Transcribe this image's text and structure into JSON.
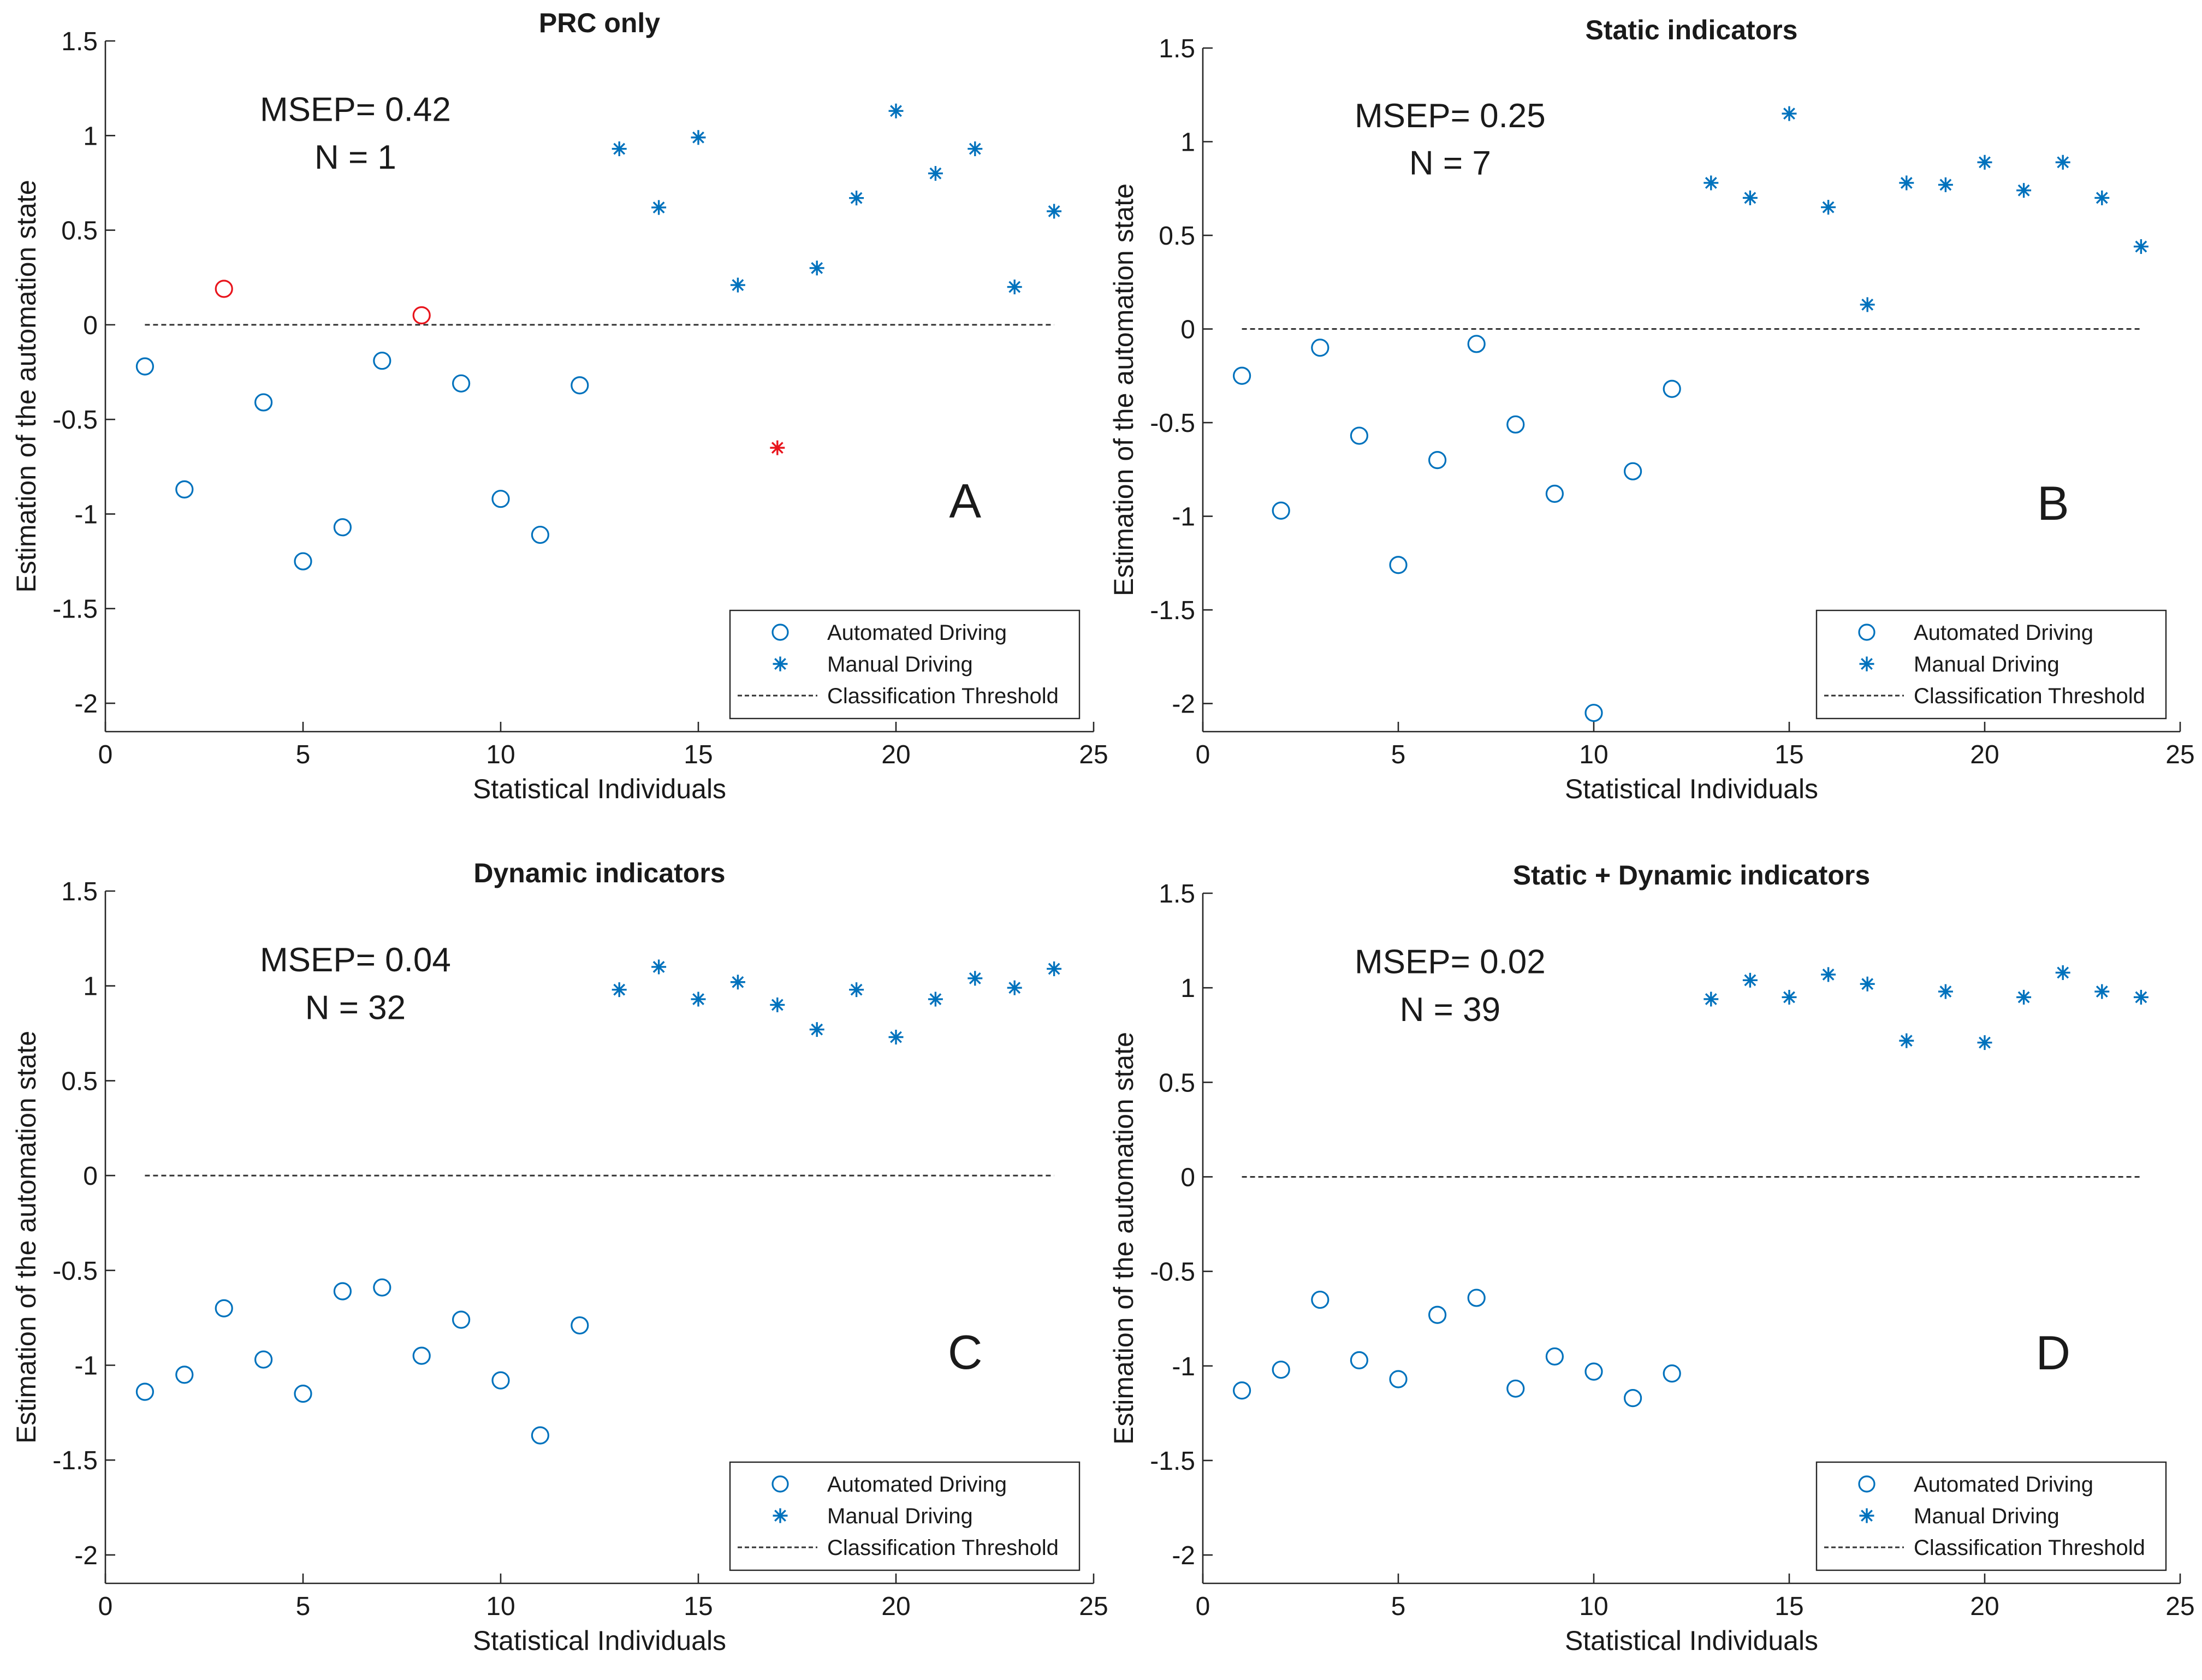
{
  "colors": {
    "automated": "#0072BD",
    "manual": "#0072BD",
    "misclassified": "#E8141C",
    "threshold": "#333333",
    "axis": "#262626"
  },
  "chart_data": [
    {
      "type": "scatter",
      "title": "PRC only",
      "panel_letter": "A",
      "annotation": {
        "msep": "MSEP= 0.42",
        "n": "N = 1"
      },
      "xlabel": "Statistical Individuals",
      "ylabel": "Estimation of the automation state",
      "xlim": [
        0,
        25
      ],
      "ylim": [
        -2.15,
        1.5
      ],
      "xticks": [
        0,
        5,
        10,
        15,
        20,
        25
      ],
      "xtick_labels": [
        "0",
        "5",
        "10",
        "15",
        "20",
        "25"
      ],
      "yticks": [
        1.5,
        1,
        0.5,
        0,
        -0.5,
        -1,
        -1.5,
        -2
      ],
      "ytick_labels": [
        "1.5",
        "1",
        "0.5",
        "0",
        "-0.5",
        "-1",
        "-1.5",
        "-2"
      ],
      "threshold": {
        "y": 0,
        "x": [
          1,
          24
        ]
      },
      "series": [
        {
          "name": "Automated Driving",
          "marker": "circle",
          "x": [
            1,
            2,
            3,
            4,
            5,
            6,
            7,
            8,
            9,
            10,
            11,
            12
          ],
          "y": [
            -0.22,
            -0.87,
            0.19,
            -0.41,
            -1.25,
            -1.07,
            -0.19,
            0.05,
            -0.31,
            -0.92,
            -1.11,
            -0.32
          ],
          "misclassified": [
            3,
            8
          ]
        },
        {
          "name": "Manual Driving",
          "marker": "star",
          "x": [
            13,
            14,
            15,
            16,
            17,
            18,
            19,
            20,
            21,
            22,
            23,
            24
          ],
          "y": [
            0.93,
            0.62,
            0.99,
            0.21,
            -0.65,
            0.3,
            0.67,
            1.13,
            0.8,
            0.93,
            0.2,
            0.6
          ],
          "misclassified": [
            17
          ]
        }
      ],
      "legend": {
        "placement": "bottom-right",
        "entries": [
          "Automated Driving",
          "Manual Driving",
          "Classification Threshold"
        ]
      }
    },
    {
      "type": "scatter",
      "title": "Static indicators",
      "panel_letter": "B",
      "annotation": {
        "msep": "MSEP= 0.25",
        "n": "N = 7"
      },
      "xlabel": "Statistical Individuals",
      "ylabel": "Estimation of the automation state",
      "xlim": [
        0,
        25
      ],
      "ylim": [
        -2.15,
        1.5
      ],
      "xticks": [
        0,
        5,
        10,
        15,
        20,
        25
      ],
      "xtick_labels": [
        "0",
        "5",
        "10",
        "15",
        "20",
        "25"
      ],
      "yticks": [
        1.5,
        1,
        0.5,
        0,
        -0.5,
        -1,
        -1.5,
        -2
      ],
      "ytick_labels": [
        "1.5",
        "1",
        "0.5",
        "0",
        "-0.5",
        "-1",
        "-1.5",
        "-2"
      ],
      "threshold": {
        "y": 0,
        "x": [
          1,
          24
        ]
      },
      "series": [
        {
          "name": "Automated Driving",
          "marker": "circle",
          "x": [
            1,
            2,
            3,
            4,
            5,
            6,
            7,
            8,
            9,
            10,
            11,
            12
          ],
          "y": [
            -0.25,
            -0.97,
            -0.1,
            -0.57,
            -1.26,
            -0.7,
            -0.08,
            -0.51,
            -0.88,
            -2.05,
            -0.76,
            -0.32
          ],
          "misclassified": []
        },
        {
          "name": "Manual Driving",
          "marker": "star",
          "x": [
            13,
            14,
            15,
            16,
            17,
            18,
            19,
            20,
            21,
            22,
            23,
            24
          ],
          "y": [
            0.78,
            0.7,
            1.15,
            0.65,
            0.13,
            0.78,
            0.77,
            0.89,
            0.74,
            0.89,
            0.7,
            0.44
          ],
          "misclassified": []
        }
      ],
      "legend": {
        "placement": "bottom-right",
        "entries": [
          "Automated Driving",
          "Manual Driving",
          "Classification Threshold"
        ]
      }
    },
    {
      "type": "scatter",
      "title": "Dynamic indicators",
      "panel_letter": "C",
      "annotation": {
        "msep": "MSEP= 0.04",
        "n": "N = 32"
      },
      "xlabel": "Statistical Individuals",
      "ylabel": "Estimation of the automation state",
      "xlim": [
        0,
        25
      ],
      "ylim": [
        -2.15,
        1.5
      ],
      "xticks": [
        0,
        5,
        10,
        15,
        20,
        25
      ],
      "xtick_labels": [
        "0",
        "5",
        "10",
        "15",
        "20",
        "25"
      ],
      "yticks": [
        1.5,
        1,
        0.5,
        0,
        -0.5,
        -1,
        -1.5,
        -2
      ],
      "ytick_labels": [
        "1.5",
        "1",
        "0.5",
        "0",
        "-0.5",
        "-1",
        "-1.5",
        "-2"
      ],
      "threshold": {
        "y": 0,
        "x": [
          1,
          24
        ]
      },
      "series": [
        {
          "name": "Automated Driving",
          "marker": "circle",
          "x": [
            1,
            2,
            3,
            4,
            5,
            6,
            7,
            8,
            9,
            10,
            11,
            12
          ],
          "y": [
            -1.14,
            -1.05,
            -0.7,
            -0.97,
            -1.15,
            -0.61,
            -0.59,
            -0.95,
            -0.76,
            -1.08,
            -1.37,
            -0.79
          ],
          "misclassified": []
        },
        {
          "name": "Manual Driving",
          "marker": "star",
          "x": [
            13,
            14,
            15,
            16,
            17,
            18,
            19,
            20,
            21,
            22,
            23,
            24
          ],
          "y": [
            0.98,
            1.1,
            0.93,
            1.02,
            0.9,
            0.77,
            0.98,
            0.73,
            0.93,
            1.04,
            0.99,
            1.09
          ],
          "misclassified": []
        }
      ],
      "legend": {
        "placement": "bottom-right",
        "entries": [
          "Automated Driving",
          "Manual Driving",
          "Classification Threshold"
        ]
      }
    },
    {
      "type": "scatter",
      "title": "Static + Dynamic indicators",
      "panel_letter": "D",
      "annotation": {
        "msep": "MSEP= 0.02",
        "n": "N = 39"
      },
      "xlabel": "Statistical Individuals",
      "ylabel": "Estimation of the automation state",
      "xlim": [
        0,
        25
      ],
      "ylim": [
        -2.15,
        1.5
      ],
      "xticks": [
        0,
        5,
        10,
        15,
        20,
        25
      ],
      "xtick_labels": [
        "0",
        "5",
        "10",
        "15",
        "20",
        "25"
      ],
      "yticks": [
        1.5,
        1,
        0.5,
        0,
        -0.5,
        -1,
        -1.5,
        -2
      ],
      "ytick_labels": [
        "1.5",
        "1",
        "0.5",
        "0",
        "-0.5",
        "-1",
        "-1.5",
        "-2"
      ],
      "threshold": {
        "y": 0,
        "x": [
          1,
          24
        ]
      },
      "series": [
        {
          "name": "Automated Driving",
          "marker": "circle",
          "x": [
            1,
            2,
            3,
            4,
            5,
            6,
            7,
            8,
            9,
            10,
            11,
            12
          ],
          "y": [
            -1.13,
            -1.02,
            -0.65,
            -0.97,
            -1.07,
            -0.73,
            -0.64,
            -1.12,
            -0.95,
            -1.03,
            -1.17,
            -1.04
          ],
          "misclassified": []
        },
        {
          "name": "Manual Driving",
          "marker": "star",
          "x": [
            13,
            14,
            15,
            16,
            17,
            18,
            19,
            20,
            21,
            22,
            23,
            24
          ],
          "y": [
            0.94,
            1.04,
            0.95,
            1.07,
            1.02,
            0.72,
            0.98,
            0.71,
            0.95,
            1.08,
            0.98,
            0.95
          ],
          "misclassified": []
        }
      ],
      "legend": {
        "placement": "bottom-right",
        "entries": [
          "Automated Driving",
          "Manual Driving",
          "Classification Threshold"
        ]
      }
    }
  ]
}
